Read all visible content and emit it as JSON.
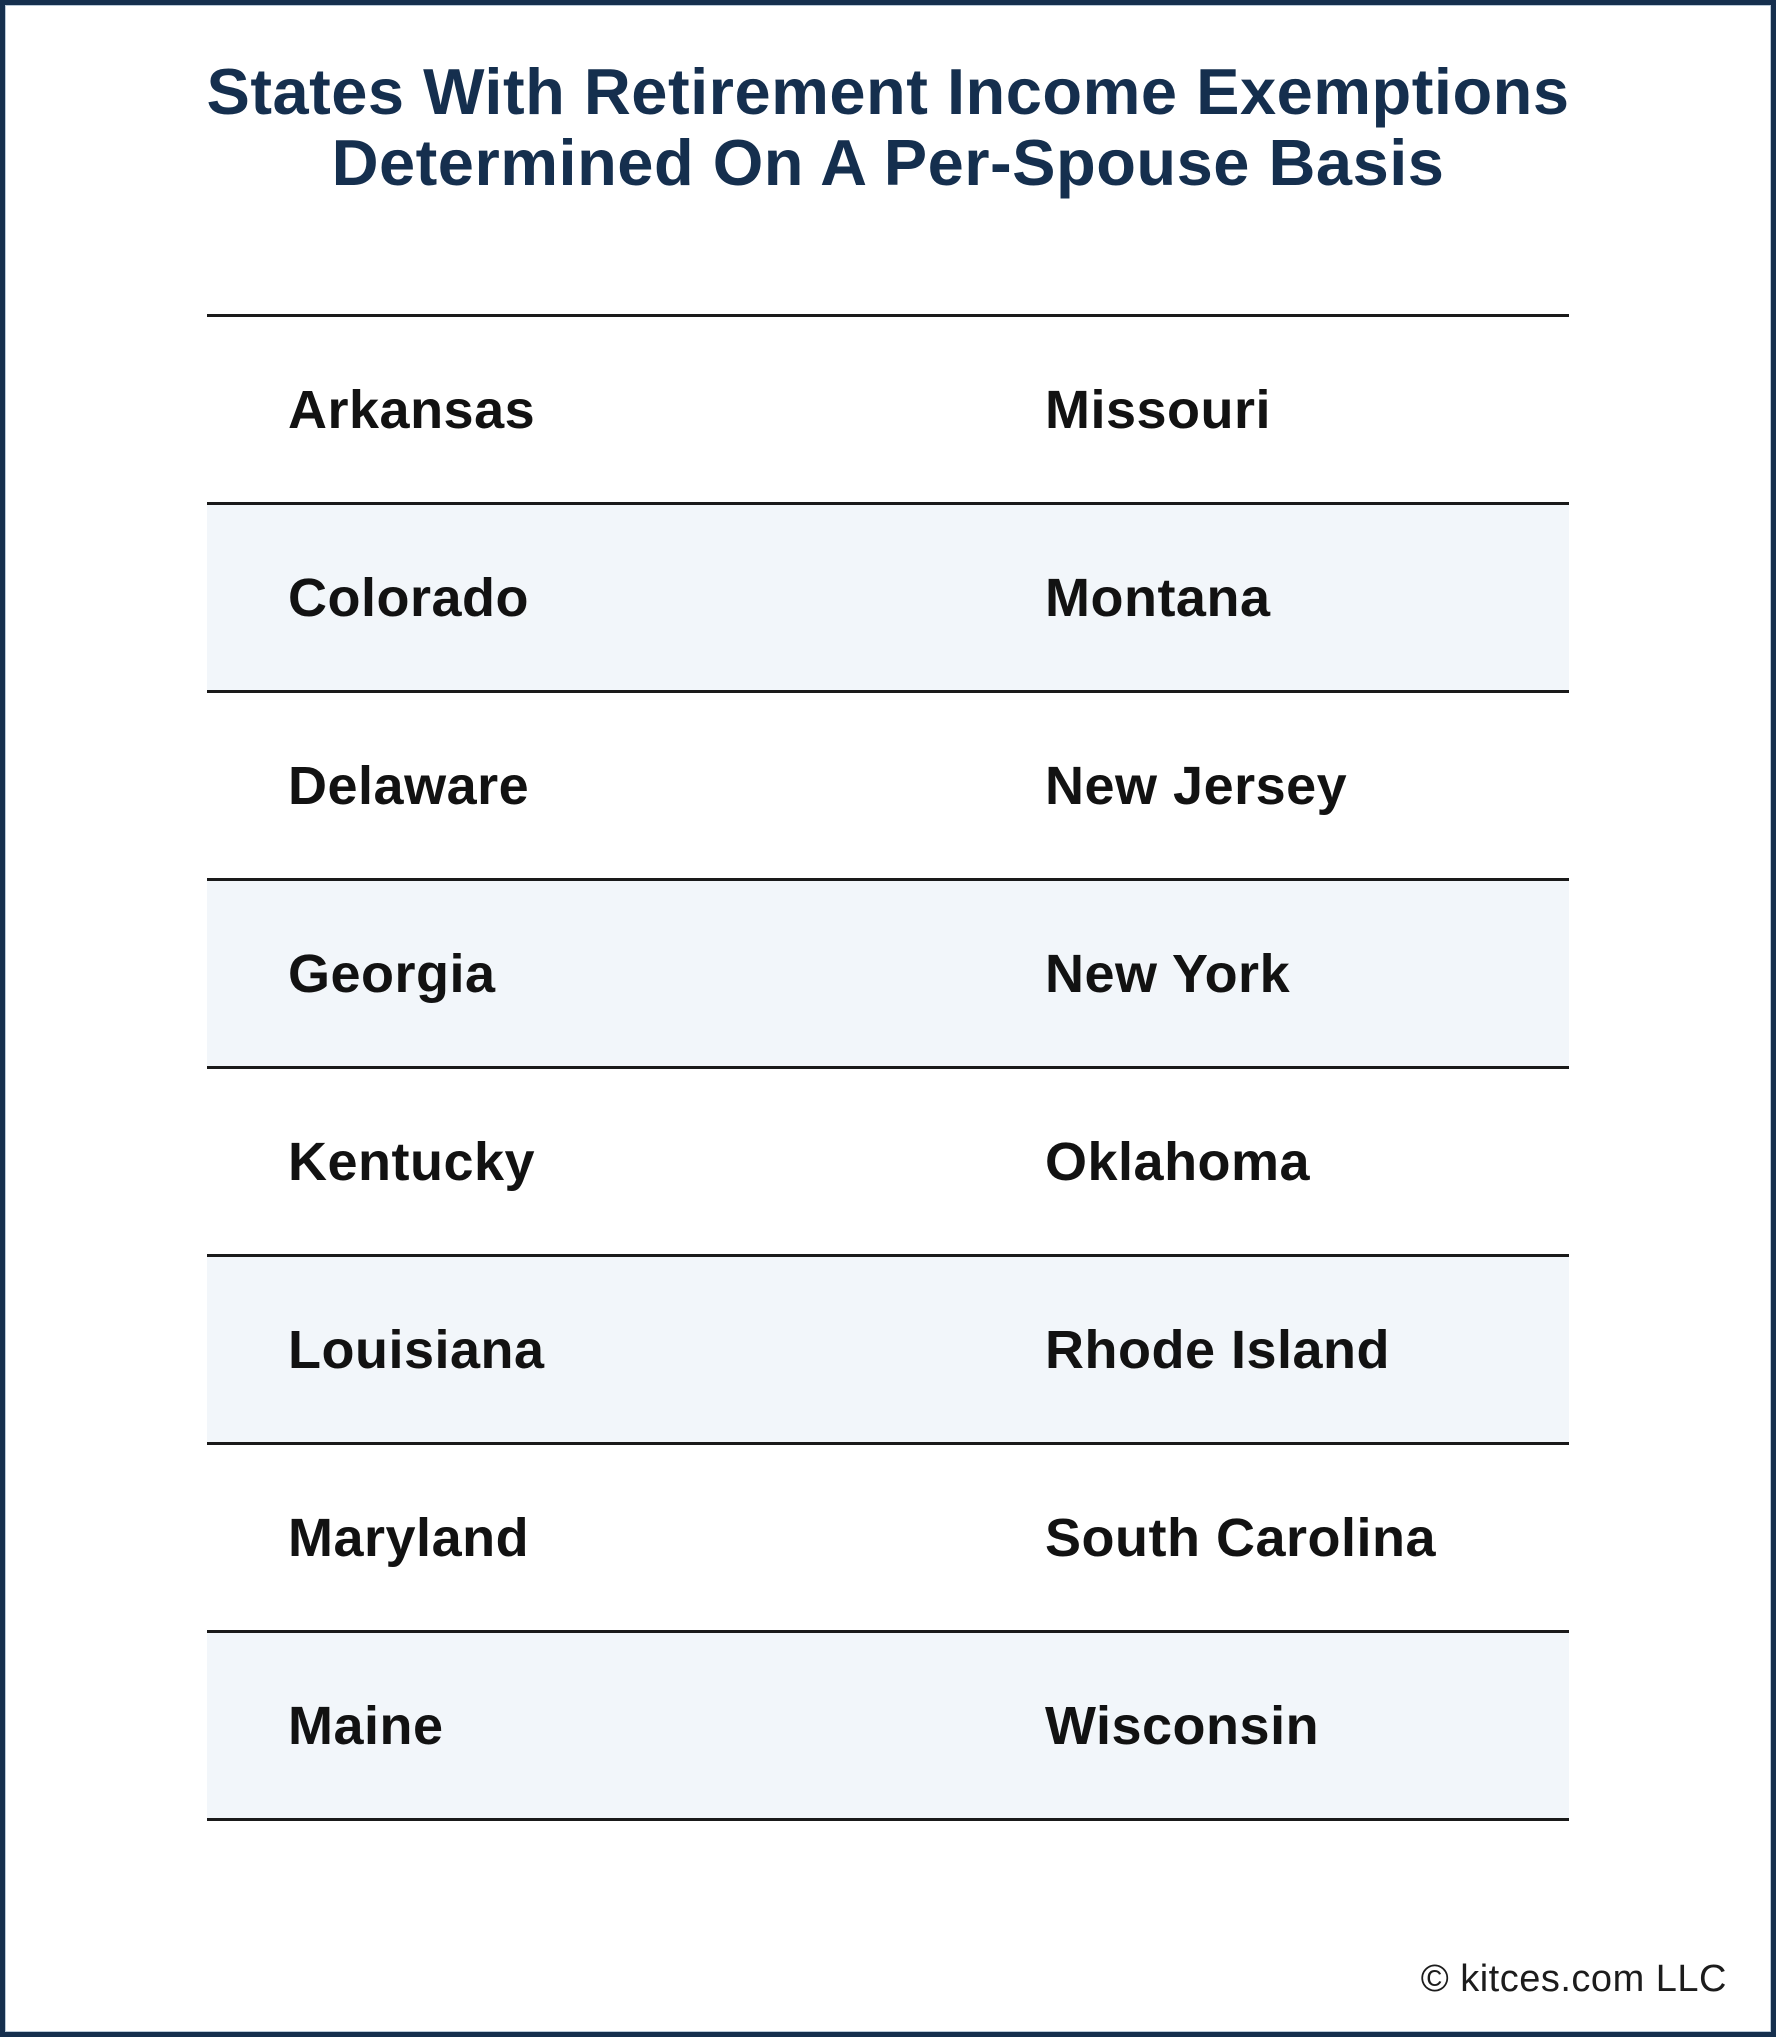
{
  "title": {
    "line1": "States With Retirement Income Exemptions",
    "line2": "Determined On A Per-Spouse Basis"
  },
  "table": {
    "rows": [
      {
        "left": "Arkansas",
        "right": "Missouri"
      },
      {
        "left": "Colorado",
        "right": "Montana"
      },
      {
        "left": "Delaware",
        "right": "New Jersey"
      },
      {
        "left": "Georgia",
        "right": "New York"
      },
      {
        "left": "Kentucky",
        "right": "Oklahoma"
      },
      {
        "left": "Louisiana",
        "right": "Rhode Island"
      },
      {
        "left": "Maryland",
        "right": "South Carolina"
      },
      {
        "left": "Maine",
        "right": "Wisconsin"
      }
    ]
  },
  "footer": {
    "copyright": "© kitces.com LLC"
  },
  "colors": {
    "border_navy": "#152F4E",
    "title_navy": "#152F4E",
    "row_alt_bg": "#F2F6FA",
    "divider": "#1A1A1A",
    "state_text": "#121212",
    "inner_edge": "#B9C9D8"
  },
  "chart_data": {
    "type": "table",
    "title": "States With Retirement Income Exemptions Determined On A Per-Spouse Basis",
    "columns": [
      "",
      ""
    ],
    "rows": [
      [
        "Arkansas",
        "Missouri"
      ],
      [
        "Colorado",
        "Montana"
      ],
      [
        "Delaware",
        "New Jersey"
      ],
      [
        "Georgia",
        "New York"
      ],
      [
        "Kentucky",
        "Oklahoma"
      ],
      [
        "Louisiana",
        "Rhode Island"
      ],
      [
        "Maryland",
        "South Carolina"
      ],
      [
        "Maine",
        "Wisconsin"
      ]
    ],
    "layout_hints": {
      "alternating_row_shading": true,
      "shaded_row_indices": [
        1,
        3,
        5,
        7
      ],
      "row_dividers": true,
      "grid": "horizontal-only",
      "legend": "none"
    }
  }
}
